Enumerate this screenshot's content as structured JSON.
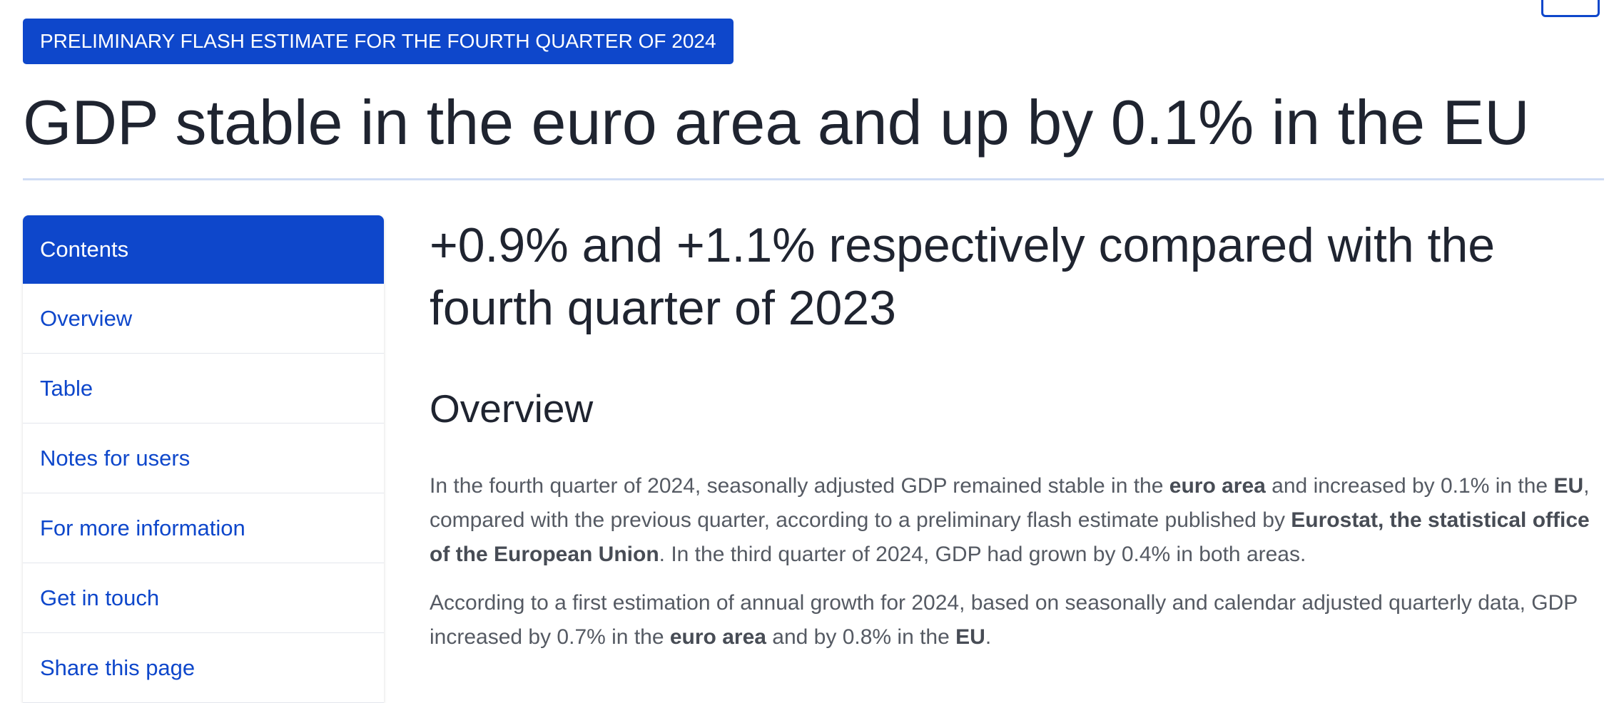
{
  "header": {
    "badge": "PRELIMINARY FLASH ESTIMATE FOR THE FOURTH QUARTER OF 2024",
    "title": "GDP stable in the euro area and up by 0.1% in the EU"
  },
  "sidebar": {
    "heading": "Contents",
    "items": [
      "Overview",
      "Table",
      "Notes for users",
      "For more information",
      "Get in touch",
      "Share this page"
    ]
  },
  "main": {
    "subtitle": "+0.9% and +1.1% respectively compared with the fourth quarter of 2023",
    "section_heading": "Overview",
    "paragraphs": [
      [
        {
          "text": "In the fourth quarter of 2024, seasonally adjusted GDP remained stable in the ",
          "bold": false
        },
        {
          "text": "euro area",
          "bold": true
        },
        {
          "text": " and increased by 0.1% in the ",
          "bold": false
        },
        {
          "text": "EU",
          "bold": true
        },
        {
          "text": ", compared with the previous quarter, according to a preliminary flash estimate published by ",
          "bold": false
        },
        {
          "text": "Eurostat, the statistical office of the European Union",
          "bold": true
        },
        {
          "text": ". In the third quarter of 2024, GDP had grown by 0.4% in both areas.",
          "bold": false
        }
      ],
      [
        {
          "text": "According to a first estimation of annual growth for 2024, based on seasonally and calendar adjusted quarterly data, GDP increased by 0.7% in the ",
          "bold": false
        },
        {
          "text": "euro area",
          "bold": true
        },
        {
          "text": " and by 0.8% in the ",
          "bold": false
        },
        {
          "text": "EU",
          "bold": true
        },
        {
          "text": ".",
          "bold": false
        }
      ]
    ]
  }
}
